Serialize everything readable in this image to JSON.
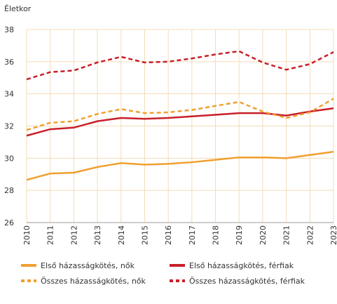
{
  "chart_data": {
    "type": "line",
    "y_label": "Életkor",
    "x": [
      "2010",
      "2011",
      "2012",
      "2013",
      "2014",
      "2015",
      "2016",
      "2017",
      "2018",
      "2019",
      "2020",
      "2021",
      "2022",
      "2023"
    ],
    "ylim": [
      26,
      38
    ],
    "yticks": [
      26,
      28,
      30,
      32,
      34,
      36,
      38
    ],
    "grid": true,
    "series": [
      {
        "name": "Első házasságkötés, nők",
        "color": "#f0a030",
        "dash": false,
        "values": [
          28.65,
          29.05,
          29.1,
          29.45,
          29.7,
          29.6,
          29.65,
          29.75,
          29.9,
          30.05,
          30.05,
          30.0,
          30.2,
          30.4
        ]
      },
      {
        "name": "Első házasságkötés, férfiak",
        "color": "#c8202a",
        "dash": false,
        "values": [
          31.4,
          31.8,
          31.9,
          32.3,
          32.5,
          32.45,
          32.5,
          32.6,
          32.7,
          32.8,
          32.8,
          32.65,
          32.9,
          33.1
        ]
      },
      {
        "name": "Összes házasságkötés, nők",
        "color": "#f0a030",
        "dash": true,
        "values": [
          31.75,
          32.2,
          32.3,
          32.75,
          33.05,
          32.8,
          32.85,
          33.0,
          33.25,
          33.5,
          32.9,
          32.5,
          32.85,
          33.7
        ]
      },
      {
        "name": "Összes házasságkötés, férfiak",
        "color": "#c8202a",
        "dash": true,
        "values": [
          34.9,
          35.35,
          35.45,
          35.95,
          36.3,
          35.95,
          36.0,
          36.2,
          36.45,
          36.65,
          35.95,
          35.5,
          35.85,
          36.6
        ]
      }
    ]
  }
}
